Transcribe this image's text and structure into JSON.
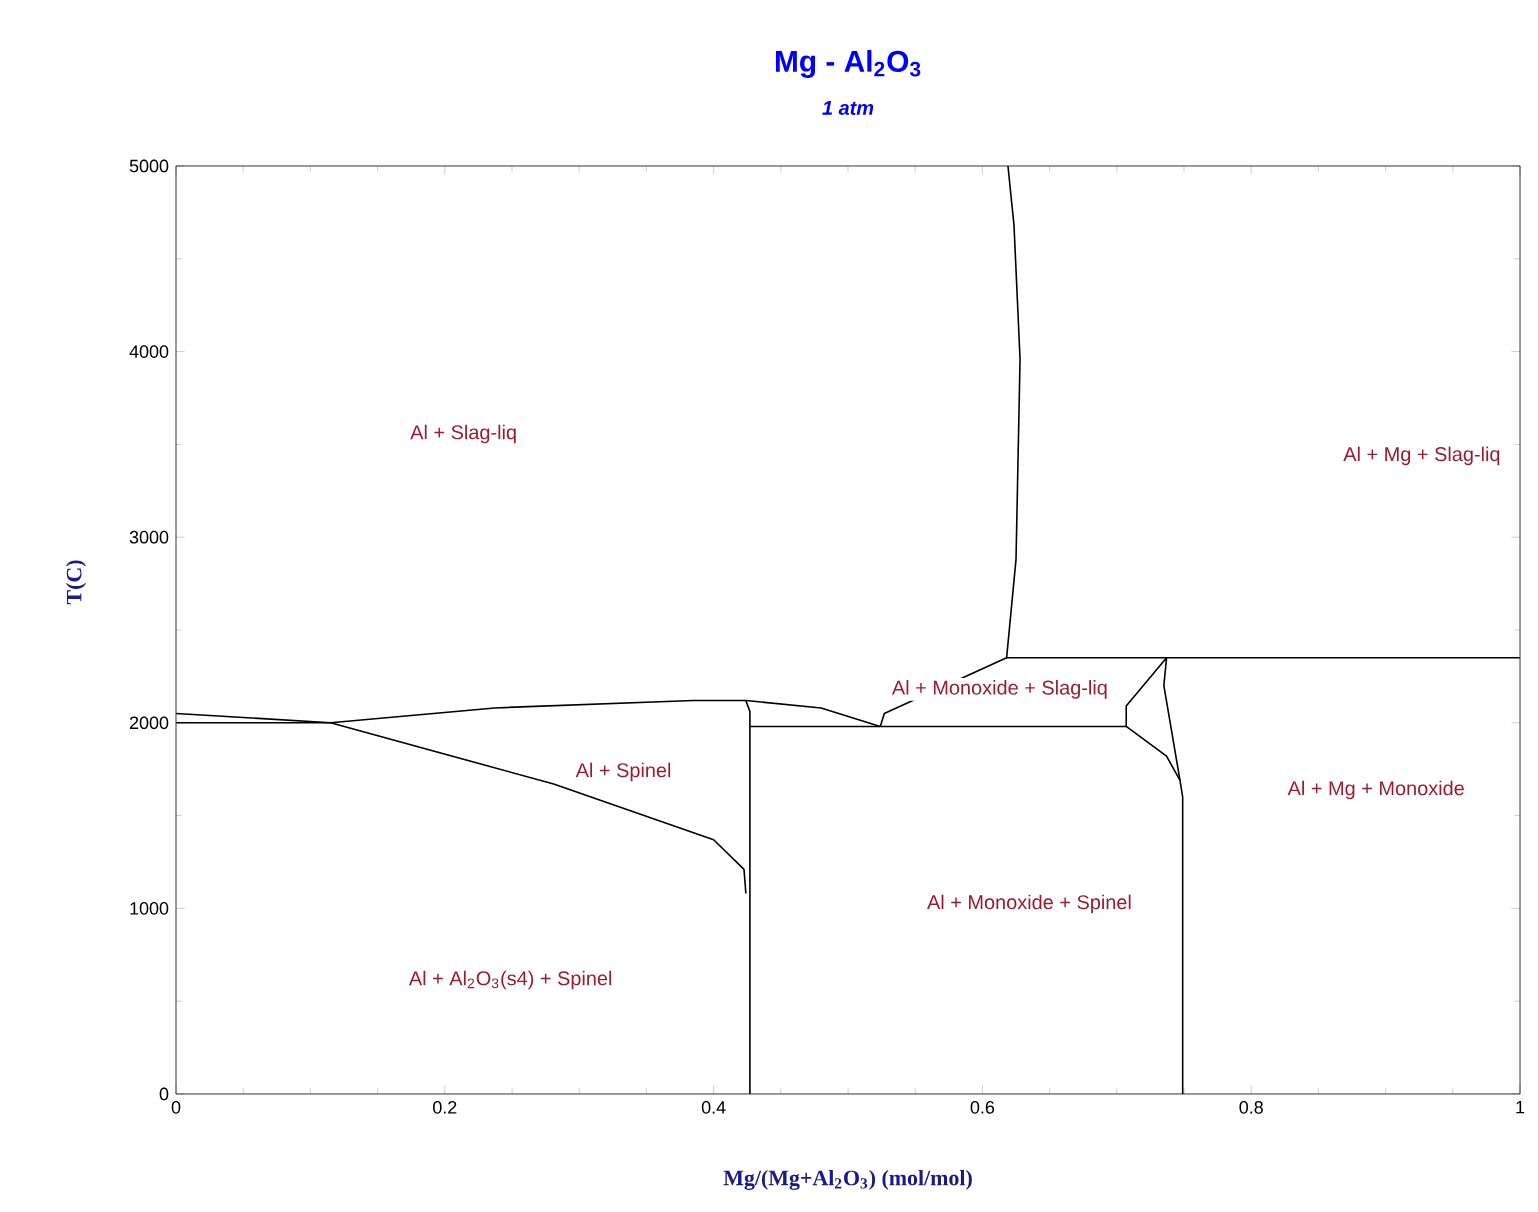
{
  "chart_data": {
    "type": "line",
    "title": "Mg - Al$_{2}$O$_{3}$",
    "subtitle": "1 atm",
    "xlabel": "Mg/(Mg+Al$_{2}$O$_{3}$) (mol/mol)",
    "ylabel": "T(C)",
    "xlim": [
      0,
      1
    ],
    "ylim": [
      0,
      5000
    ],
    "xticks": [
      0,
      0.2,
      0.4,
      0.6,
      0.8,
      1
    ],
    "yticks": [
      0,
      1000,
      2000,
      3000,
      4000,
      5000
    ],
    "grid": false,
    "series": [
      {
        "color": "#000000",
        "x": [
          0,
          0.115,
          0.237,
          0.385,
          0.424,
          0.48,
          0.524
        ],
        "values": [
          2050,
          2000,
          2080,
          2120,
          2120,
          2080,
          1980
        ]
      },
      {
        "color": "#000000",
        "x": [
          0,
          0.115,
          0.281,
          0.4,
          0.4226,
          0.424
        ],
        "values": [
          2000,
          2000,
          1670,
          1370,
          1210,
          1080
        ]
      },
      {
        "color": "#000000",
        "x": [
          0.424,
          0.427,
          0.427
        ],
        "values": [
          2120,
          2060,
          0
        ]
      },
      {
        "color": "#000000",
        "x": [
          0.427,
          0.707,
          0.707,
          0.737,
          0.735,
          0.747,
          0.749,
          0.749
        ],
        "values": [
          1980,
          1980,
          2090,
          2350,
          2200,
          1690,
          1600,
          0
        ]
      },
      {
        "color": "#000000",
        "x": [
          0.524,
          0.527,
          0.618,
          0.625,
          0.628,
          0.6235,
          0.619
        ],
        "values": [
          1980,
          2050,
          2350,
          2880,
          3960,
          4680,
          5000
        ]
      },
      {
        "color": "#000000",
        "x": [
          0.618,
          1
        ],
        "values": [
          2350,
          2350
        ]
      },
      {
        "color": "#000000",
        "x": [
          0.707,
          0.737,
          0.747
        ],
        "values": [
          1980,
          1820,
          1690
        ]
      }
    ],
    "annotations": [
      "Al + Slag-liq",
      "Al + Mg + Slag-liq",
      "Al + Monoxide + Slag-liq",
      "Al + Spinel",
      "Al + Mg + Monoxide",
      "Al + Monoxide + Spinel",
      "Al + Al$_{2}$O$_{3}$(s4) + Spinel"
    ]
  }
}
